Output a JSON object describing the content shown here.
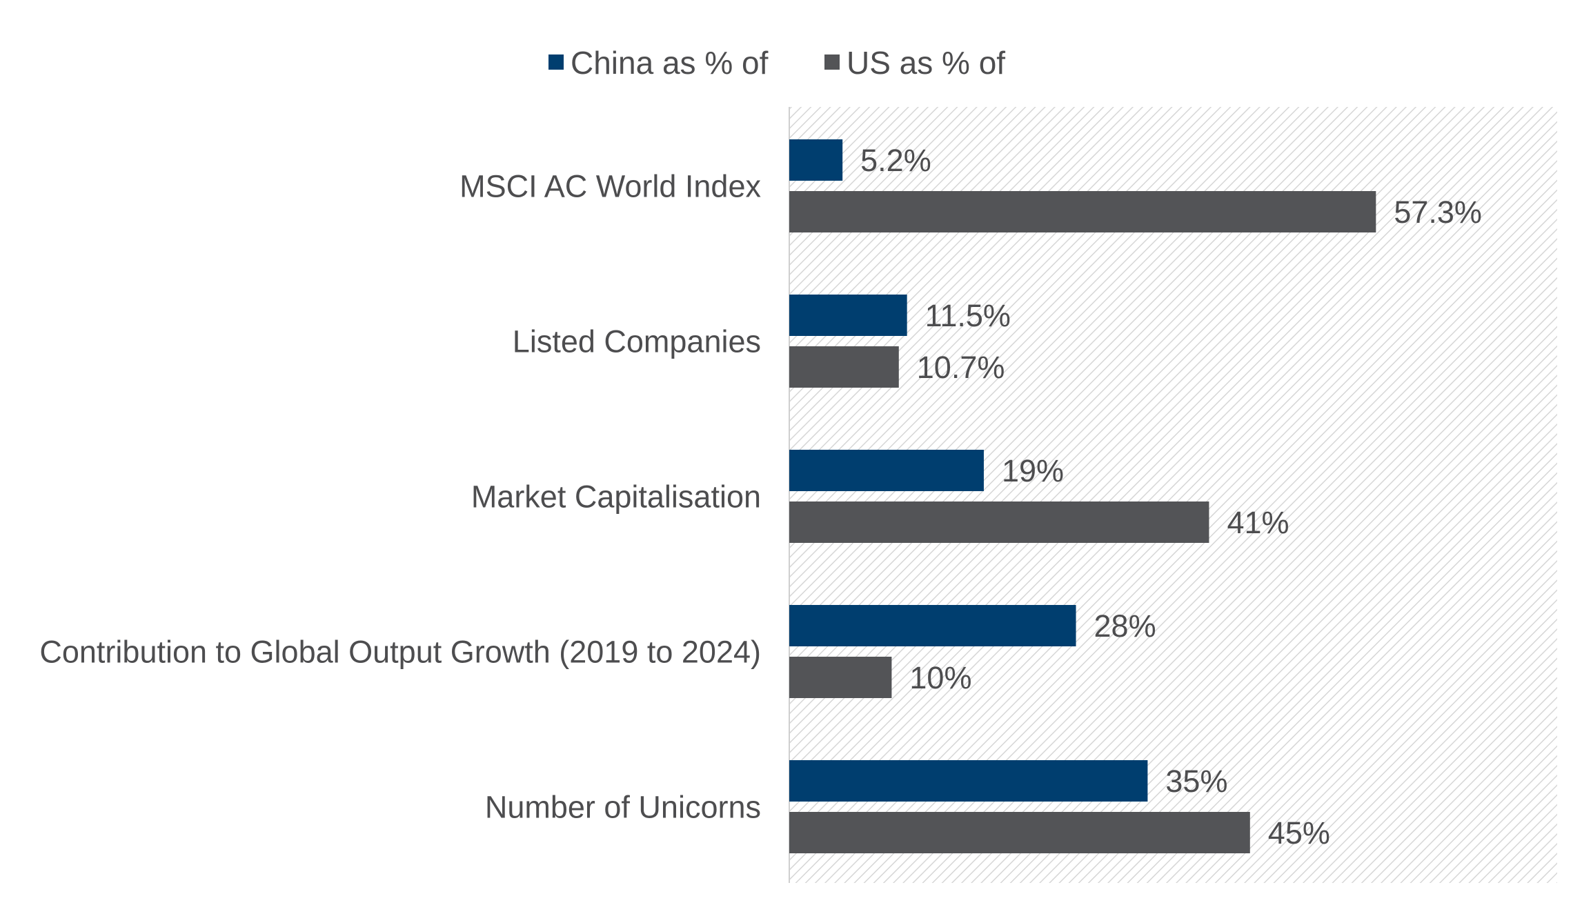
{
  "chart_data": {
    "type": "bar",
    "orientation": "horizontal",
    "title": "",
    "xlabel": "",
    "ylabel": "",
    "legend_position": "top-center",
    "grid": false,
    "plot_background": "diagonal-hatch",
    "xlim": [
      0,
      75
    ],
    "categories": [
      "MSCI AC World Index",
      "Listed Companies",
      "Market Capitalisation",
      "Contribution to Global Output Growth (2019 to 2024)",
      "Number of Unicorns"
    ],
    "series": [
      {
        "name": "China as % of",
        "color": "#003e6f",
        "values": [
          5.2,
          11.5,
          19,
          28,
          35
        ],
        "labels": [
          "5.2%",
          "11.5%",
          "19%",
          "28%",
          "35%"
        ]
      },
      {
        "name": "US as % of",
        "color": "#535457",
        "values": [
          57.3,
          10.7,
          41,
          10,
          45
        ],
        "labels": [
          "57.3%",
          "10.7%",
          "41%",
          "10%",
          "45%"
        ]
      }
    ]
  }
}
